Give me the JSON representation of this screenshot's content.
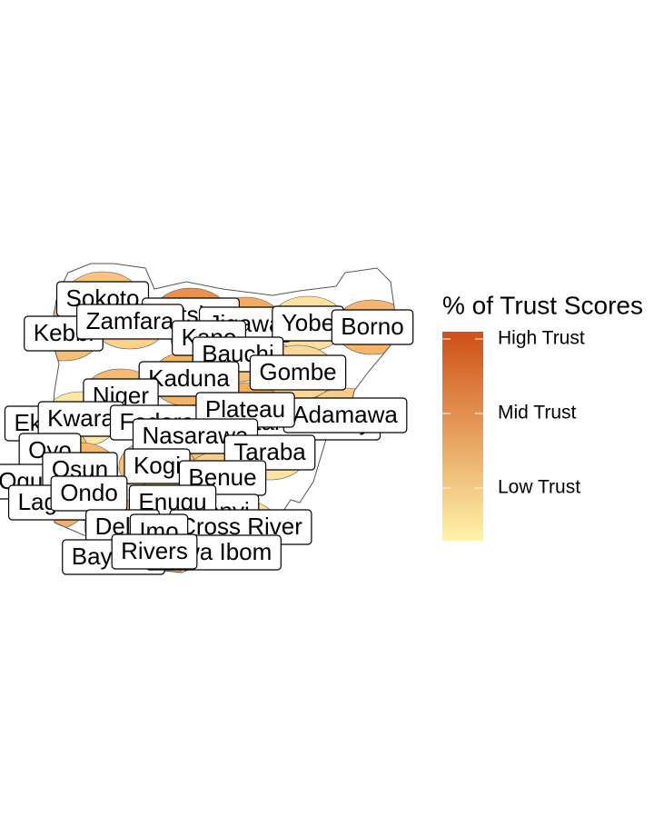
{
  "map": {
    "legend": {
      "title": "% of Trust Scores",
      "labels": [
        "High Trust",
        "Mid Trust",
        "Low Trust"
      ],
      "colors": [
        "#cf4f17",
        "#fff3a8"
      ]
    },
    "outline_color": "#555555",
    "states": [
      {
        "name": "Sokoto",
        "color": "#f7c57e"
      },
      {
        "name": "Katsina",
        "color": "#e9904a"
      },
      {
        "name": "Jigawa",
        "color": "#f2ac62"
      },
      {
        "name": "Kebbi",
        "color": "#f6bd74"
      },
      {
        "name": "Zamfara",
        "color": "#f9d08e"
      },
      {
        "name": "Yobe",
        "color": "#fde0a0"
      },
      {
        "name": "Borno",
        "color": "#f5b56c"
      },
      {
        "name": "Kano",
        "color": "#ec9a52"
      },
      {
        "name": "Bauchi",
        "color": "#f7c27a"
      },
      {
        "name": "Kaduna",
        "color": "#f4b468"
      },
      {
        "name": "Gombe",
        "color": "#fbd696"
      },
      {
        "name": "Niger",
        "color": "#f6bb72"
      },
      {
        "name": "Ekiti",
        "color": "#fbd898"
      },
      {
        "name": "Kwara",
        "color": "#fde6a6"
      },
      {
        "name": "Federal Capital Territory",
        "color": "#f1a75e"
      },
      {
        "name": "Adamawa",
        "color": "#f8cc88"
      },
      {
        "name": "Plateau",
        "color": "#f3ae64"
      },
      {
        "name": "Nasarawa",
        "color": "#f6bf76"
      },
      {
        "name": "Taraba",
        "color": "#fde4a4"
      },
      {
        "name": "Oyo",
        "color": "#f7c47c"
      },
      {
        "name": "Ogun",
        "color": "#fad293"
      },
      {
        "name": "Osun",
        "color": "#f5b86e"
      },
      {
        "name": "Kogi",
        "color": "#f6be74"
      },
      {
        "name": "Benue",
        "color": "#f9cd8a"
      },
      {
        "name": "Lagos",
        "color": "#f3b066"
      },
      {
        "name": "Ondo",
        "color": "#f8c984"
      },
      {
        "name": "Ebonyi",
        "color": "#fbd794"
      },
      {
        "name": "Enugu",
        "color": "#f5ba70"
      },
      {
        "name": "Delta",
        "color": "#f7c47c"
      },
      {
        "name": "Cross River",
        "color": "#fcdc9c"
      },
      {
        "name": "Imo",
        "color": "#f4b46a"
      },
      {
        "name": "Bayelsa",
        "color": "#f9cf8c"
      },
      {
        "name": "Akwa Ibom",
        "color": "#f6c078"
      },
      {
        "name": "Rivers",
        "color": "#f2ad63"
      }
    ]
  }
}
